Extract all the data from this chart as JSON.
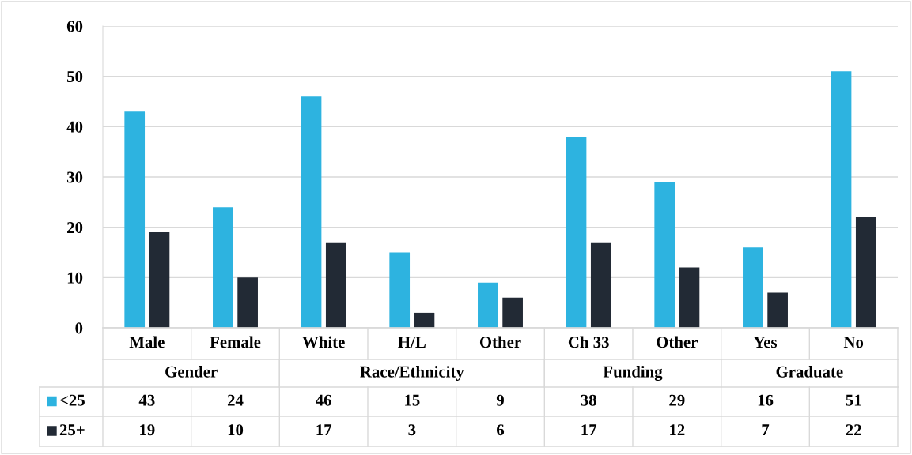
{
  "chart_data": {
    "type": "bar",
    "categories": [
      "Male",
      "Female",
      "White",
      "H/L",
      "Other",
      "Ch 33",
      "Other",
      "Yes",
      "No"
    ],
    "annotations": [
      "Gender",
      "Race/Ethnicity",
      "Funding",
      "Graduate"
    ],
    "series": [
      {
        "name": "<25",
        "color": "#2db3e0",
        "values": [
          43,
          24,
          46,
          15,
          9,
          38,
          29,
          16,
          51
        ]
      },
      {
        "name": "25+",
        "color": "#222a35",
        "values": [
          19,
          10,
          17,
          3,
          6,
          17,
          12,
          7,
          22
        ]
      }
    ],
    "ylim": [
      0,
      60
    ],
    "yticks": [
      0,
      10,
      20,
      30,
      40,
      50,
      60
    ],
    "grid": "y",
    "legend": "bottom",
    "data_labels": true
  }
}
